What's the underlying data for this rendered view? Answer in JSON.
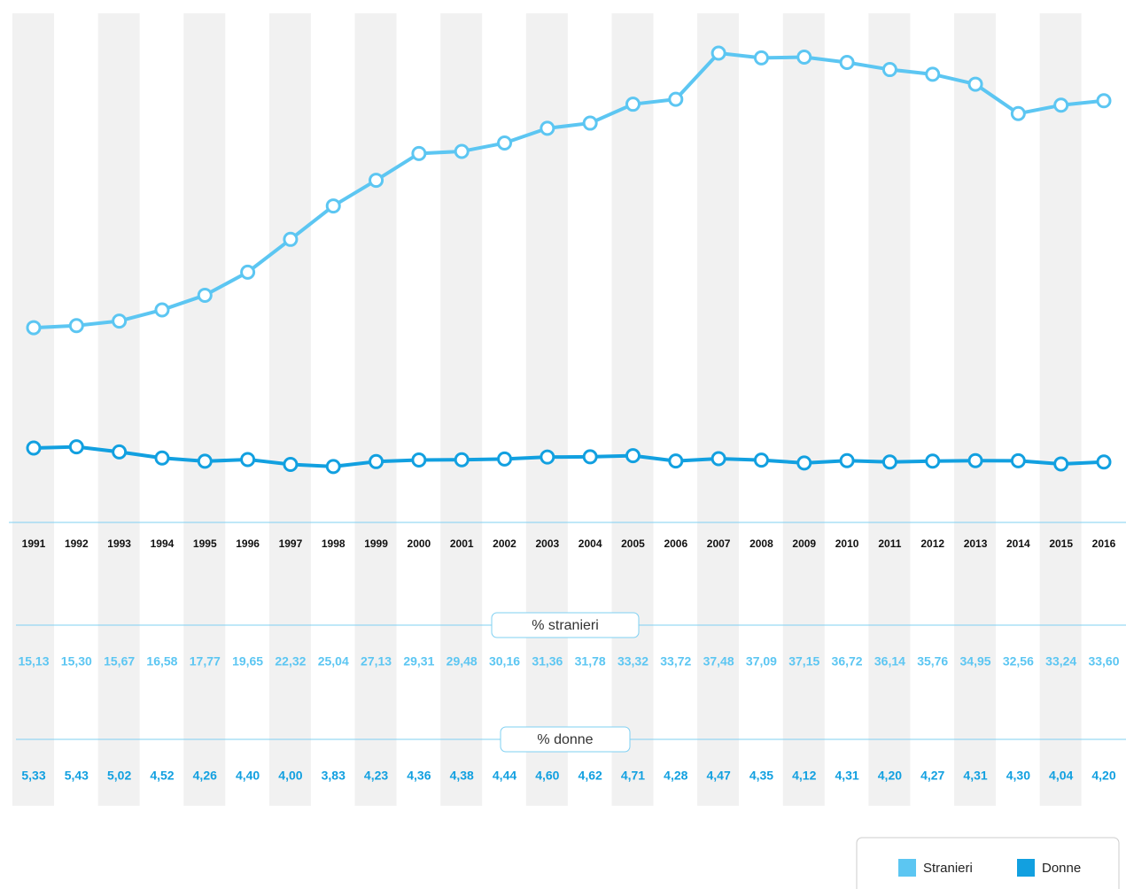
{
  "chart_data": {
    "type": "line",
    "categories": [
      "1991",
      "1992",
      "1993",
      "1994",
      "1995",
      "1996",
      "1997",
      "1998",
      "1999",
      "2000",
      "2001",
      "2002",
      "2003",
      "2004",
      "2005",
      "2006",
      "2007",
      "2008",
      "2009",
      "2010",
      "2011",
      "2012",
      "2013",
      "2014",
      "2015",
      "2016"
    ],
    "series": [
      {
        "name": "Stranieri",
        "color": "#5cc6f2",
        "values": [
          15.13,
          15.3,
          15.67,
          16.58,
          17.77,
          19.65,
          22.32,
          25.04,
          27.13,
          29.31,
          29.48,
          30.16,
          31.36,
          31.78,
          33.32,
          33.72,
          37.48,
          37.09,
          37.15,
          36.72,
          36.14,
          35.76,
          34.95,
          32.56,
          33.24,
          33.6
        ],
        "value_labels": [
          "15,13",
          "15,30",
          "15,67",
          "16,58",
          "17,77",
          "19,65",
          "22,32",
          "25,04",
          "27,13",
          "29,31",
          "29,48",
          "30,16",
          "31,36",
          "31,78",
          "33,32",
          "33,72",
          "37,48",
          "37,09",
          "37,15",
          "36,72",
          "36,14",
          "35,76",
          "34,95",
          "32,56",
          "33,24",
          "33,60"
        ]
      },
      {
        "name": "Donne",
        "color": "#12a0e0",
        "values": [
          5.33,
          5.43,
          5.02,
          4.52,
          4.26,
          4.4,
          4.0,
          3.83,
          4.23,
          4.36,
          4.38,
          4.44,
          4.6,
          4.62,
          4.71,
          4.28,
          4.47,
          4.35,
          4.12,
          4.31,
          4.2,
          4.27,
          4.31,
          4.3,
          4.04,
          4.2
        ],
        "value_labels": [
          "5,33",
          "5,43",
          "5,02",
          "4,52",
          "4,26",
          "4,40",
          "4,00",
          "3,83",
          "4,23",
          "4,36",
          "4,38",
          "4,44",
          "4,60",
          "4,62",
          "4,71",
          "4,28",
          "4,47",
          "4,35",
          "4,12",
          "4,31",
          "4,20",
          "4,27",
          "4,31",
          "4,30",
          "4,04",
          "4,20"
        ]
      }
    ],
    "annotations": [
      "% stranieri",
      "% donne"
    ],
    "ylim": [
      0,
      40
    ],
    "legend": "bottom-right"
  }
}
